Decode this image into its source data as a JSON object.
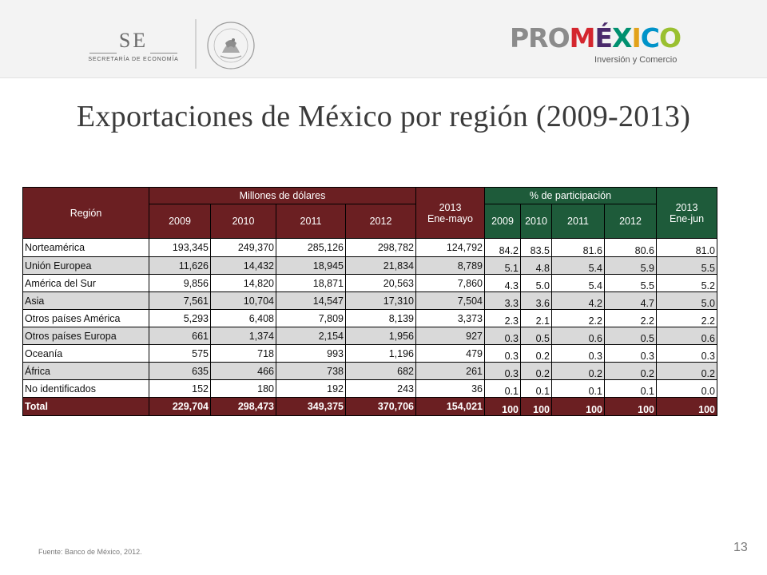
{
  "header": {
    "se_mark": "SE",
    "se_subtitle": "SECRETARÍA DE ECONOMÍA",
    "seal_text": "ESTADOS UNIDOS MEXICANOS",
    "promexico": {
      "pro": "PRO",
      "mexico": [
        "M",
        "É",
        "X",
        "I",
        "C",
        "O"
      ],
      "tagline": "Inversión y Comercio"
    }
  },
  "title": "Exportaciones de México por región (2009-2013)",
  "table": {
    "header": {
      "region": "Región",
      "millones": "Millones de dólares",
      "participacion": "% de participación",
      "mdd_years": [
        "2009",
        "2010",
        "2011",
        "2012"
      ],
      "mdd_2013_year": "2013",
      "mdd_2013_period": "Ene-mayo",
      "pct_years": [
        "2009",
        "2010",
        "2011",
        "2012"
      ],
      "pct_2013_year": "2013",
      "pct_2013_period": "Ene-jun"
    },
    "rows": [
      {
        "region": "Norteamérica",
        "mdd": [
          "193,345",
          "249,370",
          "285,126",
          "298,782",
          "124,792"
        ],
        "pct": [
          "84.2",
          "83.5",
          "81.6",
          "80.6",
          "81.0"
        ]
      },
      {
        "region": "Unión Europea",
        "mdd": [
          "11,626",
          "14,432",
          "18,945",
          "21,834",
          "8,789"
        ],
        "pct": [
          "5.1",
          "4.8",
          "5.4",
          "5.9",
          "5.5"
        ]
      },
      {
        "region": "América del Sur",
        "mdd": [
          "9,856",
          "14,820",
          "18,871",
          "20,563",
          "7,860"
        ],
        "pct": [
          "4.3",
          "5.0",
          "5.4",
          "5.5",
          "5.2"
        ]
      },
      {
        "region": "Asia",
        "mdd": [
          "7,561",
          "10,704",
          "14,547",
          "17,310",
          "7,504"
        ],
        "pct": [
          "3.3",
          "3.6",
          "4.2",
          "4.7",
          "5.0"
        ]
      },
      {
        "region": "Otros países América",
        "mdd": [
          "5,293",
          "6,408",
          "7,809",
          "8,139",
          "3,373"
        ],
        "pct": [
          "2.3",
          "2.1",
          "2.2",
          "2.2",
          "2.2"
        ]
      },
      {
        "region": "Otros países Europa",
        "mdd": [
          "661",
          "1,374",
          "2,154",
          "1,956",
          "927"
        ],
        "pct": [
          "0.3",
          "0.5",
          "0.6",
          "0.5",
          "0.6"
        ]
      },
      {
        "region": "Oceanía",
        "mdd": [
          "575",
          "718",
          "993",
          "1,196",
          "479"
        ],
        "pct": [
          "0.3",
          "0.2",
          "0.3",
          "0.3",
          "0.3"
        ]
      },
      {
        "region": "África",
        "mdd": [
          "635",
          "466",
          "738",
          "682",
          "261"
        ],
        "pct": [
          "0.3",
          "0.2",
          "0.2",
          "0.2",
          "0.2"
        ]
      },
      {
        "region": "No identificados",
        "mdd": [
          "152",
          "180",
          "192",
          "243",
          "36"
        ],
        "pct": [
          "0.1",
          "0.1",
          "0.1",
          "0.1",
          "0.0"
        ]
      }
    ],
    "total": {
      "region": "Total",
      "mdd": [
        "229,704",
        "298,473",
        "349,375",
        "370,706",
        "154,021"
      ],
      "pct": [
        "100",
        "100",
        "100",
        "100",
        "100"
      ]
    }
  },
  "footer": {
    "source": "Fuente: Banco de México, 2012.",
    "page": "13"
  },
  "colors": {
    "maroon": "#6b1f22",
    "green": "#1e5b3a",
    "gray_row": "#d9d9d9",
    "header_band": "#f3f3f3"
  }
}
